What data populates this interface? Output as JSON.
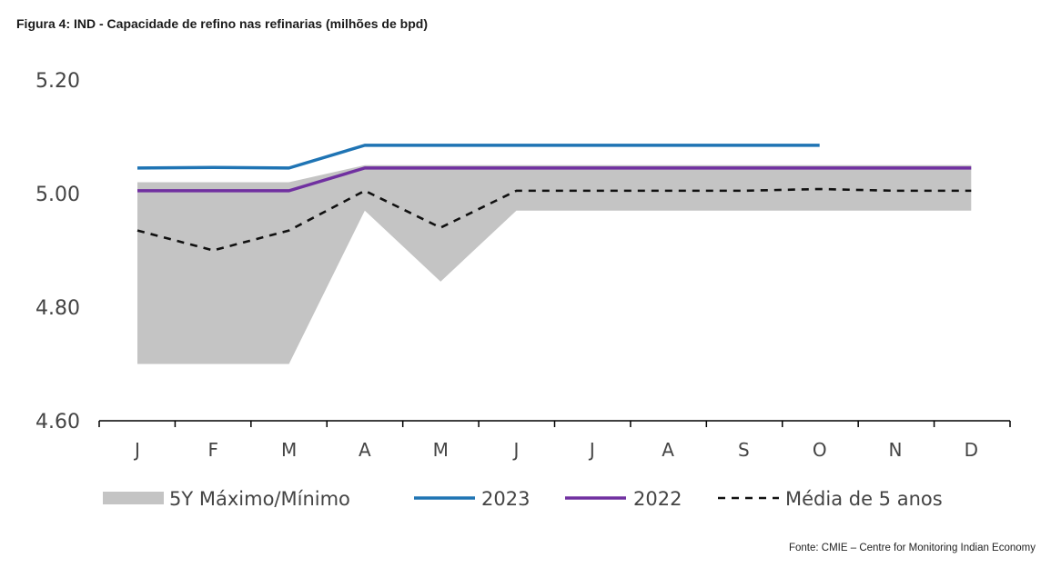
{
  "title": "Figura 4: IND - Capacidade de refino nas refinarias (milhões de bpd)",
  "source": "Fonte: CMIE – Centre for Monitoring Indian Economy",
  "chart_data": {
    "type": "line",
    "categories": [
      "J",
      "F",
      "M",
      "A",
      "M",
      "J",
      "J",
      "A",
      "S",
      "O",
      "N",
      "D"
    ],
    "y_ticks": [
      "4.60",
      "4.80",
      "5.00",
      "5.20"
    ],
    "ylim": [
      4.6,
      5.2
    ],
    "band": {
      "name": "5Y Máximo/Mínimo",
      "color": "#c4c4c4",
      "max": [
        5.02,
        5.02,
        5.02,
        5.05,
        5.05,
        5.05,
        5.05,
        5.05,
        5.05,
        5.05,
        5.05,
        5.05
      ],
      "min": [
        4.7,
        4.7,
        4.7,
        4.97,
        4.845,
        4.97,
        4.97,
        4.97,
        4.97,
        4.97,
        4.97,
        4.97
      ]
    },
    "series": [
      {
        "name": "2023",
        "color": "#1f74b4",
        "dash": "none",
        "values": [
          5.045,
          5.046,
          5.045,
          5.085,
          5.085,
          5.085,
          5.085,
          5.085,
          5.085,
          5.085,
          null,
          null
        ]
      },
      {
        "name": "2022",
        "color": "#7030a0",
        "dash": "none",
        "values": [
          5.005,
          5.005,
          5.005,
          5.045,
          5.045,
          5.045,
          5.045,
          5.045,
          5.045,
          5.045,
          5.045,
          5.045
        ]
      },
      {
        "name": "Média de 5 anos",
        "color": "#111111",
        "dash": "8 7",
        "values": [
          4.935,
          4.9,
          4.935,
          5.005,
          4.94,
          5.005,
          5.005,
          5.005,
          5.005,
          5.008,
          5.005,
          5.005
        ]
      }
    ],
    "legend_position": "bottom",
    "grid": false
  }
}
